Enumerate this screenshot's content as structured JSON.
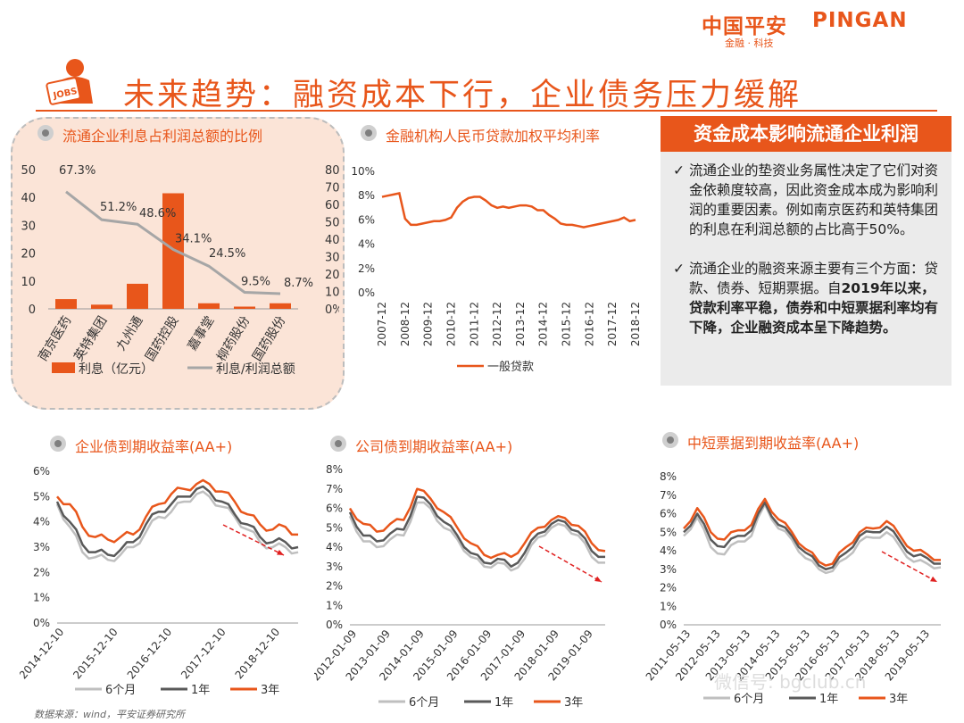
{
  "header": {
    "logo_cn": "中国平安",
    "logo_en": "PINGAN",
    "logo_sub": "金融 · 科技",
    "title": "未来趋势：融资成本下行，企业债务压力缓解",
    "icon_label": "JOBS"
  },
  "colors": {
    "accent": "#e8561b",
    "grey_line": "#a6a6a6",
    "dark_line": "#595959",
    "light_line": "#bfbfbf",
    "peach": "#f4b183"
  },
  "sidebar": {
    "heading": "资金成本影响流通企业利润",
    "items": [
      {
        "check": "✓",
        "text": "流通企业的垫资业务属性决定了它们对资金依赖度较高，因此资金成本成为影响利润的重要因素。例如南京医药和英特集团的利息在利润总额的占比高于50%。",
        "bold": ""
      },
      {
        "check": "✓",
        "text": "流通企业的融资来源主要有三个方面：贷款、债券、短期票据。自",
        "bold": "2019年以来，贷款利率平稳，债券和中短票据利率均有下降，企业融资成本呈下降趋势。"
      }
    ]
  },
  "source_note": "数据来源：wind，平安证券研究所",
  "watermark": "微信号: bgclub.cn",
  "chart_data": [
    {
      "id": "interest_ratio",
      "type": "bar",
      "title": "流通企业利息占利润总额的比例",
      "categories": [
        "南京医药",
        "英特集团",
        "九州通",
        "国药控股",
        "嘉事堂",
        "柳药股份",
        "国药股份"
      ],
      "series": [
        {
          "name": "利息（亿元）",
          "type": "bar",
          "axis": "left",
          "values": [
            3.5,
            1.5,
            9.0,
            41.5,
            2.0,
            0.8,
            2.0
          ]
        },
        {
          "name": "利息/利润总额",
          "type": "line",
          "axis": "right",
          "values": [
            67.3,
            51.2,
            48.6,
            34.1,
            24.5,
            9.5,
            8.7
          ],
          "labels": [
            "67.3%",
            "51.2%",
            "48.6%",
            "34.1%",
            "24.5%",
            "9.5%",
            "8.7%"
          ]
        }
      ],
      "ylim_left": [
        0,
        50
      ],
      "yticks_left": [
        "0",
        "10",
        "20",
        "30",
        "40",
        "50"
      ],
      "ylim_right": [
        0,
        80
      ],
      "yticks_right": [
        "0%",
        "10%",
        "20%",
        "30%",
        "40%",
        "50%",
        "60%",
        "70%",
        "80%"
      ]
    },
    {
      "id": "loan_rate",
      "type": "line",
      "title": "金融机构人民币贷款加权平均利率",
      "x": [
        "2007-12",
        "2008-03",
        "2008-06",
        "2008-09",
        "2008-12",
        "2009-03",
        "2009-06",
        "2009-09",
        "2009-12",
        "2010-03",
        "2010-06",
        "2010-09",
        "2010-12",
        "2011-03",
        "2011-06",
        "2011-09",
        "2011-12",
        "2012-03",
        "2012-06",
        "2012-09",
        "2012-12",
        "2013-03",
        "2013-06",
        "2013-09",
        "2013-12",
        "2014-03",
        "2014-06",
        "2014-09",
        "2014-12",
        "2015-03",
        "2015-06",
        "2015-09",
        "2015-12",
        "2016-03",
        "2016-06",
        "2016-09",
        "2016-12",
        "2017-03",
        "2017-06",
        "2017-09",
        "2017-12",
        "2018-03",
        "2018-06",
        "2018-09",
        "2018-12"
      ],
      "xticks": [
        "2007-12",
        "2008-12",
        "2009-12",
        "2010-12",
        "2011-12",
        "2012-12",
        "2013-12",
        "2014-12",
        "2015-12",
        "2016-12",
        "2017-12",
        "2018-12"
      ],
      "series": [
        {
          "name": "一般贷款",
          "values": [
            7.9,
            8.0,
            8.1,
            8.2,
            6.1,
            5.6,
            5.6,
            5.7,
            5.8,
            5.9,
            5.9,
            6.0,
            6.2,
            7.0,
            7.5,
            7.8,
            7.9,
            7.9,
            7.6,
            7.2,
            7.0,
            7.1,
            7.0,
            7.1,
            7.2,
            7.2,
            7.1,
            6.8,
            6.8,
            6.4,
            6.1,
            5.7,
            5.6,
            5.6,
            5.5,
            5.4,
            5.5,
            5.6,
            5.7,
            5.8,
            5.9,
            6.0,
            6.2,
            5.9,
            6.0
          ]
        }
      ],
      "ylim": [
        0,
        10
      ],
      "yticks": [
        "0%",
        "2%",
        "4%",
        "6%",
        "8%",
        "10%"
      ]
    },
    {
      "id": "enterprise_bond",
      "type": "line",
      "title": "企业债到期收益率(AA+)",
      "xticks": [
        "2014-12-10",
        "2015-12-10",
        "2016-12-10",
        "2017-12-10",
        "2018-12-10"
      ],
      "x_range": [
        "2014-12-10",
        "2019-09-30"
      ],
      "series": [
        {
          "name": "6个月",
          "values": [
            4.7,
            3.8,
            2.8,
            2.6,
            2.5,
            2.7,
            3.0,
            3.6,
            4.2,
            4.4,
            4.8,
            5.1,
            5.0,
            4.6,
            4.2,
            3.7,
            3.2,
            3.0,
            3.0,
            2.8
          ]
        },
        {
          "name": "1年",
          "values": [
            4.8,
            4.0,
            3.1,
            2.8,
            2.7,
            2.9,
            3.2,
            3.9,
            4.4,
            4.7,
            5.0,
            5.3,
            5.2,
            4.8,
            4.3,
            3.9,
            3.4,
            3.2,
            3.2,
            3.0
          ]
        },
        {
          "name": "3年",
          "values": [
            5.0,
            4.7,
            3.8,
            3.4,
            3.3,
            3.4,
            3.5,
            4.2,
            4.7,
            5.1,
            5.3,
            5.5,
            5.5,
            5.2,
            4.8,
            4.3,
            3.9,
            3.7,
            3.8,
            3.5
          ]
        }
      ],
      "ylim": [
        0,
        6
      ],
      "yticks": [
        "0%",
        "1%",
        "2%",
        "3%",
        "4%",
        "5%",
        "6%"
      ]
    },
    {
      "id": "corporate_bond",
      "type": "line",
      "title": "公司债到期收益率(AA+)",
      "xticks": [
        "2012-01-09",
        "2013-01-09",
        "2014-01-09",
        "2015-01-09",
        "2016-01-09",
        "2017-01-09",
        "2018-01-09",
        "2019-01-09"
      ],
      "x_range": [
        "2012-01-09",
        "2019-09-30"
      ],
      "series": [
        {
          "name": "6个月",
          "values": [
            5.6,
            4.3,
            4.0,
            4.4,
            4.6,
            6.3,
            6.0,
            5.0,
            4.4,
            3.5,
            3.0,
            3.2,
            2.8,
            3.4,
            4.5,
            5.0,
            5.1,
            4.6,
            3.5,
            3.2
          ]
        },
        {
          "name": "1年",
          "values": [
            5.8,
            4.6,
            4.3,
            4.7,
            4.9,
            6.6,
            6.2,
            5.3,
            4.6,
            3.7,
            3.2,
            3.4,
            3.0,
            3.7,
            4.7,
            5.2,
            5.3,
            4.8,
            3.8,
            3.5
          ]
        },
        {
          "name": "3年",
          "values": [
            6.0,
            5.2,
            4.8,
            5.2,
            5.4,
            7.0,
            6.5,
            5.8,
            5.0,
            4.2,
            3.6,
            3.6,
            3.5,
            4.2,
            5.0,
            5.4,
            5.5,
            5.1,
            4.2,
            3.8
          ]
        }
      ],
      "ylim": [
        0,
        8
      ],
      "yticks": [
        "0%",
        "1%",
        "2%",
        "3%",
        "4%",
        "5%",
        "6%",
        "7%",
        "8%"
      ]
    },
    {
      "id": "short_medium_notes",
      "type": "line",
      "title": "中短票据到期收益率(AA+)",
      "xticks": [
        "2011-05-13",
        "2012-05-13",
        "2013-05-13",
        "2014-05-13",
        "2015-05-13",
        "2016-05-13",
        "2017-05-13",
        "2018-05-13",
        "2019-05-13"
      ],
      "x_range": [
        "2011-05-13",
        "2019-09-30"
      ],
      "series": [
        {
          "name": "6个月",
          "values": [
            4.8,
            5.8,
            4.2,
            3.8,
            4.5,
            4.8,
            6.5,
            5.2,
            4.6,
            3.6,
            3.0,
            2.9,
            3.6,
            4.5,
            4.7,
            5.0,
            4.2,
            3.4,
            3.3,
            3.1
          ]
        },
        {
          "name": "1年",
          "values": [
            5.0,
            6.0,
            4.6,
            4.2,
            4.8,
            5.1,
            6.6,
            5.4,
            4.8,
            3.9,
            3.2,
            3.1,
            3.9,
            4.8,
            5.0,
            5.3,
            4.5,
            3.7,
            3.6,
            3.3
          ]
        },
        {
          "name": "3年",
          "values": [
            5.2,
            6.3,
            5.0,
            4.6,
            5.1,
            5.4,
            6.8,
            5.7,
            5.0,
            4.1,
            3.4,
            3.3,
            4.2,
            5.0,
            5.2,
            5.6,
            4.8,
            4.0,
            3.8,
            3.5
          ]
        }
      ],
      "ylim": [
        0,
        8
      ],
      "yticks": [
        "0%",
        "1%",
        "2%",
        "3%",
        "4%",
        "5%",
        "6%",
        "7%",
        "8%"
      ]
    }
  ]
}
